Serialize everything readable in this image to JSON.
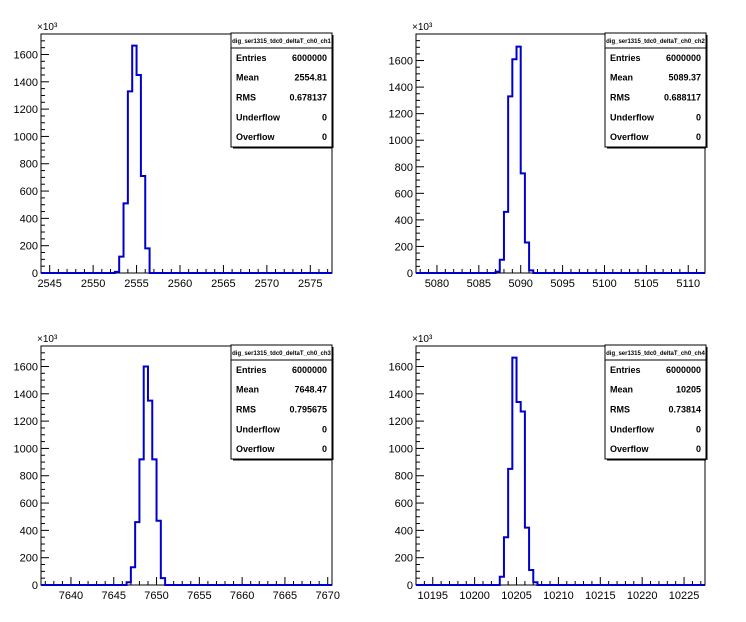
{
  "chart_data": [
    {
      "type": "bar",
      "histogram": "step",
      "y_exponent_label": "×10³",
      "xlim": [
        2544,
        2577.5
      ],
      "ylim": [
        0,
        1750
      ],
      "x_ticks": [
        2545,
        2550,
        2555,
        2560,
        2565,
        2570,
        2575
      ],
      "y_ticks": [
        0,
        200,
        400,
        600,
        800,
        1000,
        1200,
        1400,
        1600
      ],
      "bin_width": 0.5,
      "bins_x": [
        2552.5,
        2553.0,
        2553.5,
        2554.0,
        2554.5,
        2555.0,
        2555.5,
        2556.0
      ],
      "values": [
        8,
        120,
        510,
        1330,
        1665,
        1450,
        710,
        180
      ],
      "color": "#0000cc",
      "stats": {
        "title": "dig_ser1315_tdc0_deltaT_ch0_ch1",
        "rows": [
          {
            "label": "Entries",
            "value": "6000000"
          },
          {
            "label": "Mean",
            "value": "2554.81"
          },
          {
            "label": "RMS",
            "value": "0.678137"
          },
          {
            "label": "Underflow",
            "value": "0"
          },
          {
            "label": "Overflow",
            "value": "0"
          }
        ]
      }
    },
    {
      "type": "bar",
      "histogram": "step",
      "y_exponent_label": "×10³",
      "xlim": [
        5077.5,
        5112
      ],
      "ylim": [
        0,
        1800
      ],
      "x_ticks": [
        5080,
        5085,
        5090,
        5095,
        5100,
        5105,
        5110
      ],
      "y_ticks": [
        0,
        200,
        400,
        600,
        800,
        1000,
        1200,
        1400,
        1600
      ],
      "bin_width": 0.5,
      "bins_x": [
        5087.0,
        5087.5,
        5088.0,
        5088.5,
        5089.0,
        5089.5,
        5090.0,
        5090.5,
        5091.0
      ],
      "values": [
        10,
        100,
        460,
        1330,
        1610,
        1705,
        750,
        230,
        20
      ],
      "color": "#0000cc",
      "stats": {
        "title": "dig_ser1315_tdc0_deltaT_ch0_ch2",
        "rows": [
          {
            "label": "Entries",
            "value": "6000000"
          },
          {
            "label": "Mean",
            "value": "5089.37"
          },
          {
            "label": "RMS",
            "value": "0.688117"
          },
          {
            "label": "Underflow",
            "value": "0"
          },
          {
            "label": "Overflow",
            "value": "0"
          }
        ]
      }
    },
    {
      "type": "bar",
      "histogram": "step",
      "y_exponent_label": "×10³",
      "xlim": [
        7636.5,
        7670.5
      ],
      "ylim": [
        0,
        1750
      ],
      "x_ticks": [
        7640,
        7645,
        7650,
        7655,
        7660,
        7665,
        7670
      ],
      "y_ticks": [
        0,
        200,
        400,
        600,
        800,
        1000,
        1200,
        1400,
        1600
      ],
      "bin_width": 0.5,
      "bins_x": [
        7646.5,
        7647.0,
        7647.5,
        7648.0,
        7648.5,
        7649.0,
        7649.5,
        7650.0,
        7650.5
      ],
      "values": [
        20,
        130,
        460,
        920,
        1600,
        1350,
        920,
        470,
        50
      ],
      "color": "#0000cc",
      "stats": {
        "title": "dig_ser1315_tdc0_deltaT_ch0_ch3",
        "rows": [
          {
            "label": "Entries",
            "value": "6000000"
          },
          {
            "label": "Mean",
            "value": "7648.47"
          },
          {
            "label": "RMS",
            "value": "0.795675"
          },
          {
            "label": "Underflow",
            "value": "0"
          },
          {
            "label": "Overflow",
            "value": "0"
          }
        ]
      }
    },
    {
      "type": "bar",
      "histogram": "step",
      "y_exponent_label": "×10³",
      "xlim": [
        10193,
        10227.5
      ],
      "ylim": [
        0,
        1750
      ],
      "x_ticks": [
        10195,
        10200,
        10205,
        10210,
        10215,
        10220,
        10225
      ],
      "y_ticks": [
        0,
        200,
        400,
        600,
        800,
        1000,
        1200,
        1400,
        1600
      ],
      "bin_width": 0.5,
      "bins_x": [
        10203.0,
        10203.5,
        10204.0,
        10204.5,
        10205.0,
        10205.5,
        10206.0,
        10206.5,
        10207.0
      ],
      "values": [
        60,
        350,
        850,
        1665,
        1340,
        1270,
        420,
        110,
        20
      ],
      "color": "#0000cc",
      "stats": {
        "title": "dig_ser1315_tdc0_deltaT_ch0_ch4",
        "rows": [
          {
            "label": "Entries",
            "value": "6000000"
          },
          {
            "label": "Mean",
            "value": "10205"
          },
          {
            "label": "RMS",
            "value": "0.73814"
          },
          {
            "label": "Underflow",
            "value": "0"
          },
          {
            "label": "Overflow",
            "value": "0"
          }
        ]
      }
    }
  ]
}
